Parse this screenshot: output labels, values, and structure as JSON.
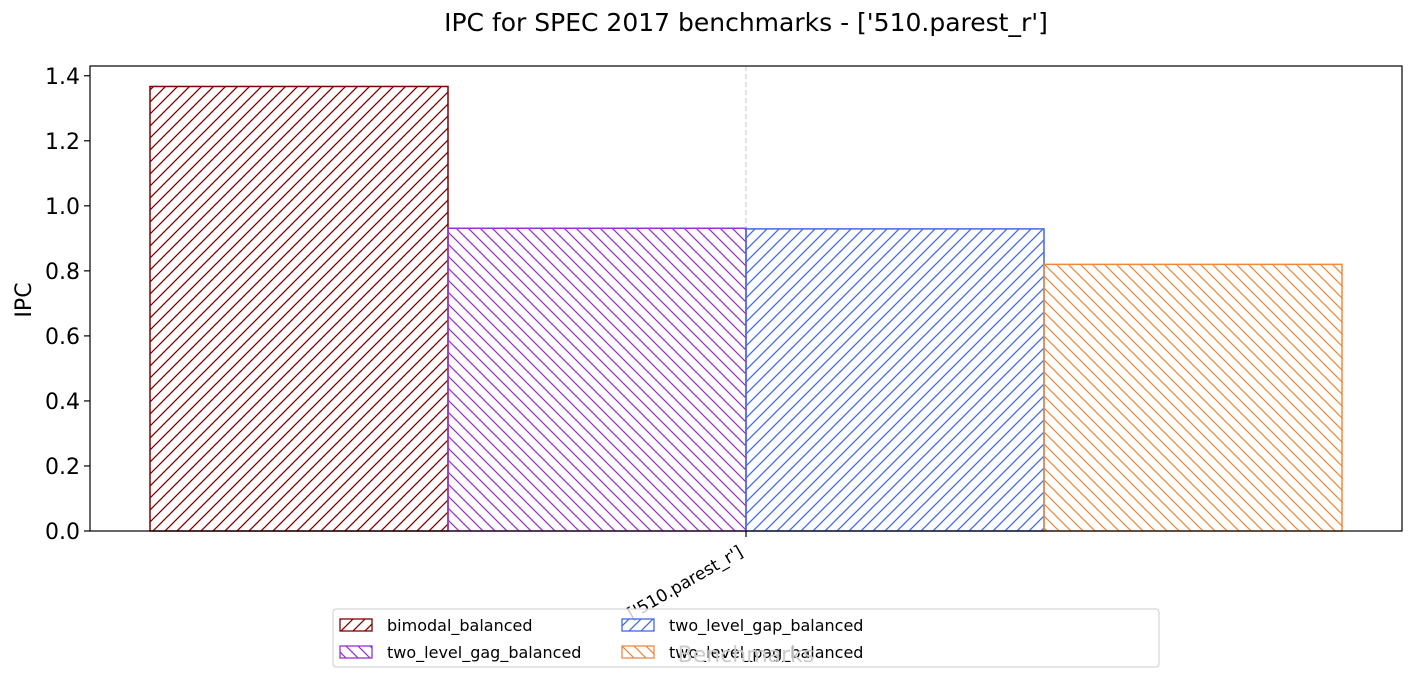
{
  "chart_data": {
    "type": "bar",
    "title": "IPC for SPEC 2017 benchmarks - ['510.parest_r']",
    "xlabel": "Benchmarks",
    "ylabel": "IPC",
    "categories": [
      "['510.parest_r']"
    ],
    "ylim": [
      0,
      1.43
    ],
    "yticks": [
      0.0,
      0.2,
      0.4,
      0.6,
      0.8,
      1.0,
      1.2,
      1.4
    ],
    "yticklabels": [
      "0.0",
      "0.2",
      "0.4",
      "0.6",
      "0.8",
      "1.0",
      "1.2",
      "1.4"
    ],
    "grid": "vertical dashed at category ticks",
    "legend": "bottom-center, below axes",
    "series": [
      {
        "name": "bimodal_balanced",
        "values": [
          1.367
        ],
        "color": "#800000",
        "hatch": "forward"
      },
      {
        "name": "two_level_gag_balanced",
        "values": [
          0.931
        ],
        "color": "#9932cc",
        "hatch": "backward"
      },
      {
        "name": "two_level_gap_balanced",
        "values": [
          0.929
        ],
        "color": "#4169e1",
        "hatch": "forward"
      },
      {
        "name": "two_level_pag_balanced",
        "values": [
          0.82
        ],
        "color": "#f0883e",
        "hatch": "backward"
      }
    ]
  }
}
